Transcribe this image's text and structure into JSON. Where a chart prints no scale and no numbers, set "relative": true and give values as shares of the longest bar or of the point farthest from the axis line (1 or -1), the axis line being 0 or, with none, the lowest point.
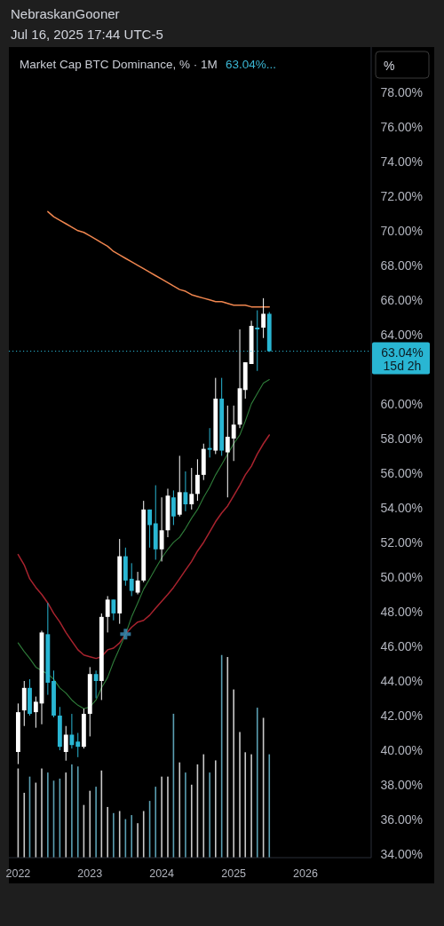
{
  "chart_data": [
    {
      "type": "candlestick",
      "title": "Market Cap BTC Dominance, % · 1M",
      "annotations": [
        "NebraskanGooner",
        "Jul 16, 2025 17:44 UTC-5",
        "63.04%...",
        "%",
        "15d 2h"
      ],
      "x": [
        "2022-01",
        "2022-02",
        "2022-03",
        "2022-04",
        "2022-05",
        "2022-06",
        "2022-07",
        "2022-08",
        "2022-09",
        "2022-10",
        "2022-11",
        "2022-12",
        "2023-01",
        "2023-02",
        "2023-03",
        "2023-04",
        "2023-05",
        "2023-06",
        "2023-07",
        "2023-08",
        "2023-09",
        "2023-10",
        "2023-11",
        "2023-12",
        "2024-01",
        "2024-02",
        "2024-03",
        "2024-04",
        "2024-05",
        "2024-06",
        "2024-07",
        "2024-08",
        "2024-09",
        "2024-10",
        "2024-11",
        "2024-12",
        "2025-01",
        "2025-02",
        "2025-03",
        "2025-04",
        "2025-05",
        "2025-06",
        "2025-07"
      ],
      "xlim": [
        "2021-11-15",
        "2026-12-01"
      ],
      "xticks": [
        "2022",
        "2023",
        "2024",
        "2025",
        "2026"
      ],
      "ylim": [
        33.8,
        80.6
      ],
      "yticks": [
        {
          "value": 34,
          "label": "34.00%"
        },
        {
          "value": 36,
          "label": "36.00%"
        },
        {
          "value": 38,
          "label": "38.00%"
        },
        {
          "value": 40,
          "label": "40.00%"
        },
        {
          "value": 42,
          "label": "42.00%"
        },
        {
          "value": 44,
          "label": "44.00%"
        },
        {
          "value": 46,
          "label": "46.00%"
        },
        {
          "value": 48,
          "label": "48.00%"
        },
        {
          "value": 50,
          "label": "50.00%"
        },
        {
          "value": 52,
          "label": "52.00%"
        },
        {
          "value": 54,
          "label": "54.00%"
        },
        {
          "value": 56,
          "label": "56.00%"
        },
        {
          "value": 58,
          "label": "58.00%"
        },
        {
          "value": 60,
          "label": "60.00%"
        },
        {
          "value": 64,
          "label": "64.00%"
        },
        {
          "value": 66,
          "label": "66.00%"
        },
        {
          "value": 68,
          "label": "68.00%"
        },
        {
          "value": 70,
          "label": "70.00%"
        },
        {
          "value": 72,
          "label": "72.00%"
        },
        {
          "value": 74,
          "label": "74.00%"
        },
        {
          "value": 76,
          "label": "76.00%"
        },
        {
          "value": 78,
          "label": "78.00%"
        }
      ],
      "ohlc": [
        [
          39.9,
          42.7,
          39.2,
          42.2
        ],
        [
          42.3,
          44.0,
          41.4,
          43.6
        ],
        [
          43.6,
          44.1,
          42.0,
          42.1
        ],
        [
          42.2,
          43.1,
          41.3,
          42.8
        ],
        [
          42.7,
          46.9,
          41.5,
          46.8
        ],
        [
          46.7,
          48.5,
          43.2,
          43.9
        ],
        [
          44.0,
          44.6,
          41.9,
          42.0
        ],
        [
          42.0,
          42.5,
          40.0,
          40.2
        ],
        [
          39.9,
          41.4,
          39.4,
          40.9
        ],
        [
          40.9,
          42.1,
          40.1,
          40.3
        ],
        [
          40.5,
          41.0,
          39.6,
          40.2
        ],
        [
          40.2,
          42.4,
          40.1,
          42.1
        ],
        [
          42.1,
          44.8,
          40.8,
          44.4
        ],
        [
          44.4,
          44.6,
          43.0,
          44.0
        ],
        [
          44.0,
          47.9,
          42.9,
          47.7
        ],
        [
          47.7,
          48.9,
          46.8,
          48.7
        ],
        [
          48.7,
          48.7,
          47.5,
          47.9
        ],
        [
          47.9,
          52.2,
          47.3,
          51.2
        ],
        [
          51.2,
          51.7,
          49.5,
          49.8
        ],
        [
          49.9,
          50.8,
          48.9,
          49.2
        ],
        [
          49.1,
          50.3,
          49.0,
          49.8
        ],
        [
          49.8,
          54.4,
          49.7,
          53.9
        ],
        [
          53.9,
          53.9,
          51.7,
          53.0
        ],
        [
          53.1,
          55.3,
          51.0,
          51.6
        ],
        [
          51.6,
          54.6,
          50.9,
          52.7
        ],
        [
          52.7,
          55.1,
          52.3,
          54.7
        ],
        [
          54.6,
          55.0,
          53.0,
          53.5
        ],
        [
          53.6,
          57.0,
          53.5,
          54.9
        ],
        [
          54.9,
          56.1,
          53.8,
          54.2
        ],
        [
          54.2,
          56.3,
          53.9,
          54.8
        ],
        [
          54.8,
          56.8,
          54.4,
          55.9
        ],
        [
          55.9,
          57.7,
          55.6,
          57.4
        ],
        [
          57.45,
          58.6,
          56.9,
          57.35
        ],
        [
          57.3,
          61.5,
          57.1,
          60.3
        ],
        [
          60.3,
          61.5,
          57.0,
          57.3
        ],
        [
          57.2,
          59.9,
          54.6,
          58.1
        ],
        [
          58.0,
          59.9,
          56.7,
          58.8
        ],
        [
          58.8,
          64.3,
          58.6,
          60.9
        ],
        [
          60.8,
          62.4,
          60.3,
          62.4
        ],
        [
          62.3,
          64.8,
          62.3,
          64.5
        ],
        [
          64.4,
          65.4,
          61.9,
          64.3
        ],
        [
          64.4,
          66.1,
          63.8,
          65.2
        ],
        [
          65.2,
          65.3,
          63.0,
          63.04
        ]
      ],
      "colors": [
        "#ffffff",
        "#ffffff",
        "#29b6d3",
        "#ffffff",
        "#ffffff",
        "#29b6d3",
        "#29b6d3",
        "#29b6d3",
        "#ffffff",
        "#29b6d3",
        "#29b6d3",
        "#ffffff",
        "#ffffff",
        "#29b6d3",
        "#ffffff",
        "#ffffff",
        "#29b6d3",
        "#ffffff",
        "#29b6d3",
        "#29b6d3",
        "#ffffff",
        "#ffffff",
        "#29b6d3",
        "#29b6d3",
        "#ffffff",
        "#ffffff",
        "#29b6d3",
        "#ffffff",
        "#29b6d3",
        "#ffffff",
        "#ffffff",
        "#ffffff",
        "#29b6d3",
        "#ffffff",
        "#29b6d3",
        "#ffffff",
        "#ffffff",
        "#ffffff",
        "#ffffff",
        "#ffffff",
        "#29b6d3",
        "#ffffff",
        "#29b6d3"
      ],
      "series": [
        {
          "type": "line",
          "color": "#f0864f",
          "values": [
            null,
            null,
            null,
            null,
            null,
            71.1,
            70.8,
            70.6,
            70.4,
            70.2,
            70.0,
            69.9,
            69.7,
            69.5,
            69.3,
            69.1,
            68.8,
            68.6,
            68.4,
            68.2,
            68.0,
            67.8,
            67.6,
            67.4,
            67.2,
            67.0,
            66.8,
            66.6,
            66.5,
            66.3,
            66.2,
            66.1,
            66.0,
            65.9,
            65.9,
            65.8,
            65.7,
            65.7,
            65.7,
            65.6,
            65.6,
            65.6,
            65.6
          ]
        },
        {
          "type": "line",
          "color": "#a8232e",
          "values": [
            51.3,
            50.7,
            49.9,
            49.4,
            49.0,
            48.5,
            47.9,
            47.4,
            46.8,
            46.3,
            45.8,
            45.5,
            45.4,
            45.3,
            45.4,
            45.8,
            45.9,
            46.2,
            46.7,
            47.1,
            47.4,
            47.5,
            47.8,
            48.2,
            48.6,
            49.0,
            49.4,
            49.9,
            50.4,
            50.9,
            51.5,
            52.0,
            52.6,
            53.2,
            53.7,
            54.1,
            54.7,
            55.3,
            55.9,
            56.4,
            57.1,
            57.7,
            58.2
          ]
        },
        {
          "type": "line",
          "color": "#2f7d3a",
          "values": [
            46.2,
            45.7,
            45.3,
            44.8,
            44.6,
            44.4,
            44.1,
            43.6,
            43.3,
            42.9,
            42.6,
            42.4,
            42.5,
            42.9,
            43.6,
            44.2,
            45.1,
            45.9,
            46.7,
            47.7,
            48.5,
            49.3,
            49.9,
            50.5,
            51.1,
            51.6,
            52.0,
            52.3,
            52.8,
            53.4,
            53.9,
            54.6,
            55.2,
            55.9,
            56.5,
            57.1,
            57.7,
            58.2,
            59.0,
            60.0,
            60.6,
            61.2,
            61.4
          ]
        }
      ],
      "ref_lines": [
        {
          "axis": "y",
          "value": 63.04,
          "label": "63.04%",
          "color": "#29b6d3",
          "line_style": "dotted"
        }
      ]
    },
    {
      "type": "bar",
      "relative": true,
      "x": [
        "2022-01",
        "2022-02",
        "2022-03",
        "2022-04",
        "2022-05",
        "2022-06",
        "2022-07",
        "2022-08",
        "2022-09",
        "2022-10",
        "2022-11",
        "2022-12",
        "2023-01",
        "2023-02",
        "2023-03",
        "2023-04",
        "2023-05",
        "2023-06",
        "2023-07",
        "2023-08",
        "2023-09",
        "2023-10",
        "2023-11",
        "2023-12",
        "2024-01",
        "2024-02",
        "2024-03",
        "2024-04",
        "2024-05",
        "2024-06",
        "2024-07",
        "2024-08",
        "2024-09",
        "2024-10",
        "2024-11",
        "2024-12",
        "2025-01",
        "2025-02",
        "2025-03",
        "2025-04",
        "2025-05",
        "2025-06",
        "2025-07"
      ],
      "xlim": [
        "2021-11-15",
        "2026-12-01"
      ],
      "values": [
        0.44,
        0.32,
        0.4,
        0.37,
        0.44,
        0.42,
        0.38,
        0.39,
        0.42,
        0.46,
        0.45,
        0.26,
        0.33,
        0.35,
        0.43,
        0.25,
        0.22,
        0.23,
        0.19,
        0.21,
        0.17,
        0.23,
        0.28,
        0.35,
        0.4,
        0.4,
        0.71,
        0.47,
        0.42,
        0.36,
        0.46,
        0.51,
        0.42,
        0.48,
        1,
        0.99,
        0.83,
        0.62,
        0.52,
        0.51,
        0.74,
        0.69,
        0.51
      ],
      "colors": [
        "#c8c8c8",
        "#c8c8c8",
        "#5b9fb2",
        "#c8c8c8",
        "#c8c8c8",
        "#5b9fb2",
        "#5b9fb2",
        "#5b9fb2",
        "#c8c8c8",
        "#5b9fb2",
        "#5b9fb2",
        "#c8c8c8",
        "#c8c8c8",
        "#5b9fb2",
        "#c8c8c8",
        "#c8c8c8",
        "#5b9fb2",
        "#c8c8c8",
        "#5b9fb2",
        "#5b9fb2",
        "#c8c8c8",
        "#c8c8c8",
        "#5b9fb2",
        "#5b9fb2",
        "#c8c8c8",
        "#c8c8c8",
        "#5b9fb2",
        "#c8c8c8",
        "#5b9fb2",
        "#c8c8c8",
        "#c8c8c8",
        "#c8c8c8",
        "#5b9fb2",
        "#c8c8c8",
        "#5b9fb2",
        "#c8c8c8",
        "#c8c8c8",
        "#c8c8c8",
        "#c8c8c8",
        "#c8c8c8",
        "#5b9fb2",
        "#c8c8c8",
        "#5b9fb2"
      ]
    }
  ]
}
